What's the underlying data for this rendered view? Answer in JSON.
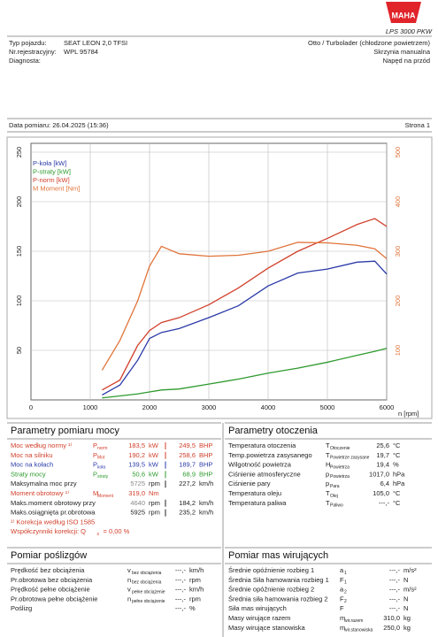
{
  "header": {
    "logo": "MAHA",
    "model": "LPS 3000 PKW"
  },
  "vehicle": {
    "left": [
      {
        "label": "Typ pojazdu:",
        "value": "SEAT LEON 2,0 TFSI"
      },
      {
        "label": "Nr.rejestracyjny:",
        "value": "WPL 95784"
      },
      {
        "label": "Diagnosta:"
      }
    ],
    "right": [
      "Otto / Turbolader (chłodzone powietrzem)",
      "Skrzynia manualna",
      "Napęd na przód"
    ]
  },
  "measurement": {
    "date": "Data pomiaru: 26.04.2025 (15:36)",
    "page": "Strona 1"
  },
  "chart_data": {
    "type": "line",
    "x_label": "n [rpm]",
    "x_origin_label": "0",
    "x": [
      1200,
      1500,
      1800,
      2000,
      2200,
      2500,
      3000,
      3500,
      4000,
      4500,
      5000,
      5500,
      5800,
      6000
    ],
    "xlim": [
      0,
      6000
    ],
    "xticks": [
      1000,
      2000,
      3000,
      4000,
      5000,
      6000
    ],
    "ylim": [
      0,
      250
    ],
    "yticks": [
      50,
      100,
      150,
      200,
      250
    ],
    "y2lim": [
      0,
      500
    ],
    "y2ticks": [
      100,
      200,
      300,
      400,
      500
    ],
    "grid": true,
    "series": [
      {
        "name": "P-koła [kW]",
        "color": "#2b3aa8",
        "values": [
          5,
          15,
          40,
          62,
          68,
          72,
          83,
          95,
          115,
          128,
          132,
          139,
          140,
          127
        ]
      },
      {
        "name": "P-straty [kW]",
        "color": "#2e9a2e",
        "values": [
          2,
          4,
          6,
          8,
          10,
          11,
          16,
          21,
          27,
          32,
          38,
          45,
          49,
          52
        ]
      },
      {
        "name": "P-norm [kW]",
        "color": "#d1402c",
        "values": [
          10,
          20,
          55,
          70,
          78,
          83,
          96,
          113,
          133,
          150,
          163,
          177,
          183,
          175
        ]
      },
      {
        "name": "M Moment [Nm]",
        "color": "#e0743a",
        "axis": "y2",
        "values": [
          60,
          120,
          200,
          270,
          310,
          295,
          290,
          292,
          300,
          318,
          317,
          312,
          305,
          285
        ]
      }
    ]
  },
  "power": {
    "title": "Parametry pomiaru mocy",
    "rows": [
      {
        "label": "Moc według normy ¹⁾",
        "sym": "P",
        "sub": "norm",
        "v1": "183,5",
        "u1": "kW",
        "v2": "249,5",
        "u2": "BHP",
        "color": "#d1402c"
      },
      {
        "label": "Moc na silniku",
        "sym": "P",
        "sub": "Mot",
        "v1": "190,2",
        "u1": "kW",
        "v2": "258,6",
        "u2": "BHP",
        "color": "#d1402c"
      },
      {
        "label": "Moc na kołach",
        "sym": "P",
        "sub": "koła",
        "v1": "139,5",
        "u1": "kW",
        "v2": "189,7",
        "u2": "BHP",
        "color": "#2b3aa8"
      },
      {
        "label": "Straty mocy",
        "sym": "P",
        "sub": "straty",
        "v1": "50,6",
        "u1": "kW",
        "v2": "68,9",
        "u2": "BHP",
        "color": "#2e9a2e"
      },
      {
        "label": "Maksymalna moc przy",
        "v1": "5725",
        "u1": "rpm",
        "v2": "227,2",
        "u2": "km/h",
        "color": "#222"
      },
      {
        "label": "Moment obrotowy ¹⁾",
        "sym": "M",
        "sub": "Moment",
        "v1": "319,0",
        "u1": "Nm",
        "color": "#d1402c"
      },
      {
        "label": "Maks.moment obrotowy przy",
        "v1": "4640",
        "u1": "rpm",
        "v2": "184,2",
        "u2": "km/h",
        "color": "#222"
      },
      {
        "label": "Maks.osiągnięta pr.obrotowa",
        "v1": "5925",
        "u1": "rpm",
        "v2": "235,2",
        "u2": "km/h",
        "color": "#222"
      },
      {
        "label": "¹⁾ Korekcja według ISO 1585",
        "color": "#d1402c"
      },
      {
        "label": "Współczynniki korekcji: Q",
        "sub": "s",
        "v1": "= 0,00 %",
        "color": "#d1402c"
      }
    ]
  },
  "ambient": {
    "title": "Parametry otoczenia",
    "rows": [
      {
        "label": "Temperatura otoczenia",
        "sym": "T",
        "sub": "Otoczenie",
        "v1": "25,6",
        "u1": "°C"
      },
      {
        "label": "Temp.powietrza zasysanego",
        "sym": "T",
        "sub": "Powietrze zasysane",
        "v1": "19,7",
        "u1": "°C"
      },
      {
        "label": "Wilgotność powietrza",
        "sym": "H",
        "sub": "Powietrza",
        "v1": "19,4",
        "u1": "%"
      },
      {
        "label": "Ciśnienie atmosferyczne",
        "sym": "p",
        "sub": "Powietrza",
        "v1": "1017,0",
        "u1": "hPa"
      },
      {
        "label": "Ciśnienie pary",
        "sym": "p",
        "sub": "Para",
        "v1": "6,4",
        "u1": "hPa"
      },
      {
        "label": "Temperatura oleju",
        "sym": "T",
        "sub": "Olej",
        "v1": "105,0",
        "u1": "°C"
      },
      {
        "label": "Temperatura paliwa",
        "sym": "T",
        "sub": "Paliwo",
        "v1": "---,-",
        "u1": "°C"
      }
    ]
  },
  "slip": {
    "title": "Pomiar poślizgów",
    "rows": [
      {
        "label": "Prędkość bez obciążenia",
        "sym": "v",
        "sub": "bez obciążenia",
        "v1": "---,-",
        "u1": "km/h"
      },
      {
        "label": "Pr.obrotowa bez obciążenia",
        "sym": "n",
        "sub": "bez obciążenia",
        "v1": "---,-",
        "u1": "rpm"
      },
      {
        "label": "Prędkość pełne obciążenie",
        "sym": "v",
        "sub": "pełne obciążenie",
        "v1": "---,-",
        "u1": "km/h"
      },
      {
        "label": "Pr.obrotowa pełne obciążenie",
        "sym": "n",
        "sub": "pełne obciążenie",
        "v1": "---,-",
        "u1": "rpm"
      },
      {
        "label": "Poślizg",
        "v1": "---,-",
        "u1": "%"
      }
    ]
  },
  "mass": {
    "title": "Pomiar mas wirujących",
    "rows": [
      {
        "label": "Średnie opóźnienie rozbieg 1",
        "sym": "a",
        "sub": "1",
        "v1": "---,-",
        "u1": "m/s²"
      },
      {
        "label": "Średnia Siła hamowania rozbieg 1",
        "sym": "F",
        "sub": "1",
        "v1": "---,-",
        "u1": "N"
      },
      {
        "label": "Średnie opóźnienie rozbieg 2",
        "sym": "a",
        "sub": "2",
        "v1": "---,-",
        "u1": "m/s²"
      },
      {
        "label": "Średnia siła hamowania rozbieg 2",
        "sym": "F",
        "sub": "2",
        "v1": "---,-",
        "u1": "N"
      },
      {
        "label": "Siła mas wirujących",
        "sym": "F",
        "v1": "---,-",
        "u1": "N"
      },
      {
        "label": "Masy wirujące razem",
        "sym": "m",
        "sub": "wir.razem",
        "v1": "310,0",
        "u1": "kg"
      },
      {
        "label": "Masy wirujące stanowiska",
        "sym": "m",
        "sub": "wir.stanowiska",
        "v1": "250,0",
        "u1": "kg"
      }
    ]
  }
}
